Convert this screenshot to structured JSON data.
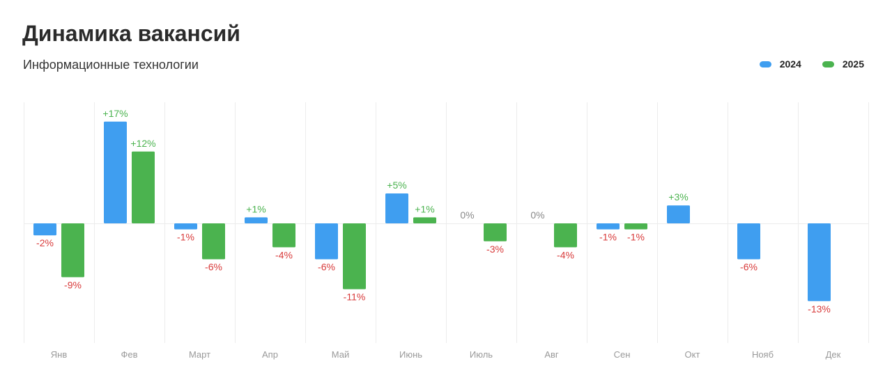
{
  "header": {
    "title": "Динамика вакансий",
    "subtitle": "Информационные технологии"
  },
  "colors": {
    "series_2024": "#3f9ef0",
    "series_2025": "#4bb34f",
    "positive_label": "#4bb34f",
    "negative_label": "#d83a3a",
    "zero_label": "#888888",
    "grid": "#ececec"
  },
  "chart_data": {
    "type": "bar",
    "title": "Динамика вакансий",
    "subtitle": "Информационные технологии",
    "xlabel": "",
    "ylabel": "",
    "categories": [
      "Янв",
      "Фев",
      "Март",
      "Апр",
      "Май",
      "Июнь",
      "Июль",
      "Авг",
      "Сен",
      "Окт",
      "Нояб",
      "Дек"
    ],
    "series": [
      {
        "name": "2024",
        "values": [
          -2,
          17,
          -1,
          1,
          -6,
          5,
          0,
          0,
          -1,
          3,
          -6,
          -13
        ],
        "labels": [
          "-2%",
          "+17%",
          "-1%",
          "+1%",
          "-6%",
          "+5%",
          "0%",
          "0%",
          "-1%",
          "+3%",
          "-6%",
          "-13%"
        ]
      },
      {
        "name": "2025",
        "values": [
          -9,
          12,
          -6,
          -4,
          -11,
          1,
          -3,
          -4,
          -1,
          null,
          null,
          null
        ],
        "labels": [
          "-9%",
          "+12%",
          "-6%",
          "-4%",
          "-11%",
          "+1%",
          "-3%",
          "-4%",
          "-1%",
          null,
          null,
          null
        ]
      }
    ],
    "ylim": [
      -20,
      20
    ],
    "grid": true,
    "legend_position": "top-right"
  }
}
